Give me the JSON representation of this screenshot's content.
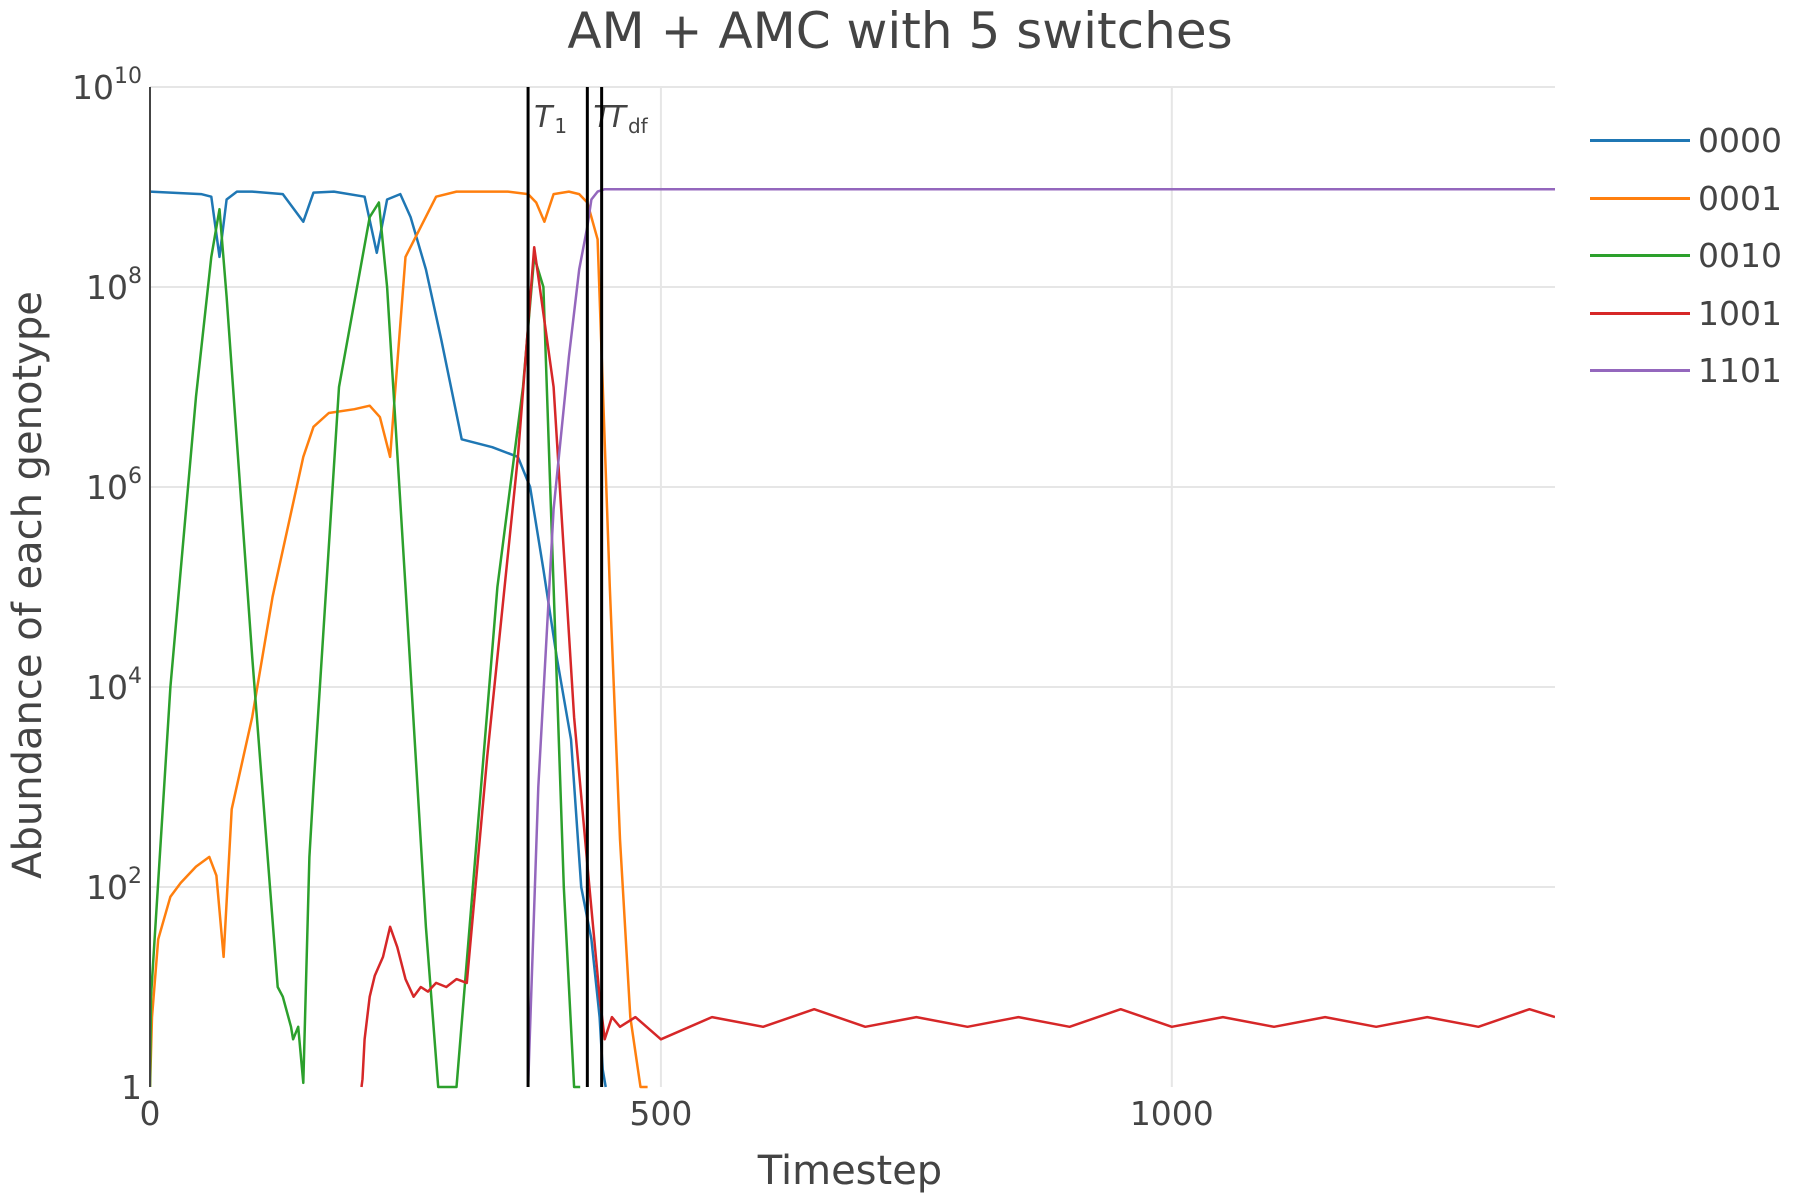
{
  "title": "AM + AMC with 5 switches",
  "xlabel": "Timestep",
  "ylabel": "Abundance of each genotype",
  "chart_data": {
    "type": "line",
    "title": "AM + AMC with 5 switches",
    "xlabel": "Timestep",
    "ylabel": "Abundance of each genotype",
    "xscale": "linear",
    "yscale": "log",
    "xlim": [
      0,
      1375
    ],
    "ylim": [
      1,
      10000000000
    ],
    "xticks": [
      0,
      500,
      1000
    ],
    "yticks": [
      1,
      100,
      10000,
      1000000,
      100000000,
      10000000000
    ],
    "ytick_labels": [
      {
        "base": "1",
        "exp": ""
      },
      {
        "base": "10",
        "exp": "2"
      },
      {
        "base": "10",
        "exp": "4"
      },
      {
        "base": "10",
        "exp": "6"
      },
      {
        "base": "10",
        "exp": "8"
      },
      {
        "base": "10",
        "exp": "10"
      }
    ],
    "grid": true,
    "legend_position": "right",
    "vlines": [
      {
        "x": 370,
        "label": "T",
        "sub": "1"
      },
      {
        "x": 428,
        "label": "T",
        "sub": ""
      },
      {
        "x": 442,
        "label": "T",
        "sub": "df"
      }
    ],
    "series": [
      {
        "name": "0000",
        "color": "#1f77b4",
        "x": [
          0,
          50,
          60,
          68,
          75,
          85,
          100,
          130,
          150,
          160,
          180,
          210,
          222,
          232,
          245,
          255,
          270,
          285,
          305,
          335,
          360,
          372,
          385,
          398,
          412,
          422,
          432,
          440,
          443,
          446
        ],
        "y": [
          900000000,
          850000000,
          800000000,
          200000000,
          750000000,
          900000000,
          900000000,
          850000000,
          450000000,
          880000000,
          900000000,
          800000000,
          220000000,
          750000000,
          850000000,
          500000000,
          150000000,
          30000000,
          3000000,
          2500000,
          2000000,
          1000000,
          150000,
          20000,
          3000,
          100,
          30,
          5,
          1.5,
          1
        ]
      },
      {
        "name": "0001",
        "color": "#ff7f0e",
        "x": [
          0,
          2,
          8,
          20,
          30,
          45,
          58,
          65,
          72,
          80,
          100,
          120,
          150,
          160,
          175,
          200,
          215,
          225,
          235,
          250,
          265,
          280,
          300,
          320,
          350,
          370,
          378,
          386,
          395,
          410,
          420,
          428,
          438,
          450,
          460,
          470,
          480,
          487
        ],
        "y": [
          1,
          5,
          30,
          80,
          110,
          160,
          200,
          130,
          20,
          600,
          5000,
          80000,
          2000000,
          4000000,
          5500000,
          6000000,
          6500000,
          5000000,
          2000000,
          200000000,
          400000000,
          800000000,
          900000000,
          900000000,
          900000000,
          850000000,
          700000000,
          450000000,
          850000000,
          900000000,
          850000000,
          700000000,
          300000000,
          100000,
          300,
          5,
          1,
          1
        ]
      },
      {
        "name": "0010",
        "color": "#2ca02c",
        "x": [
          0,
          1,
          20,
          45,
          60,
          68,
          75,
          100,
          125,
          130,
          138,
          140,
          145,
          150,
          156,
          160,
          185,
          215,
          224,
          232,
          250,
          270,
          282,
          300,
          340,
          365,
          376,
          385,
          395,
          405,
          415,
          421
        ],
        "y": [
          1,
          8,
          10000,
          8000000,
          200000000,
          600000000,
          80000000,
          20000,
          10,
          8,
          4,
          3,
          4,
          1.1,
          200,
          1000,
          10000000,
          500000000,
          700000000,
          100000000,
          100000,
          40,
          1,
          1,
          100000,
          10000000,
          200000000,
          100000000,
          100000,
          100,
          1,
          1
        ]
      },
      {
        "name": "1001",
        "color": "#d62728",
        "x": [
          207,
          208,
          210,
          215,
          220,
          228,
          235,
          242,
          250,
          258,
          265,
          272,
          280,
          290,
          300,
          310,
          330,
          360,
          376,
          395,
          415,
          430,
          440,
          445,
          452,
          460,
          475,
          500,
          550,
          600,
          650,
          700,
          750,
          800,
          850,
          900,
          950,
          1000,
          1050,
          1100,
          1150,
          1200,
          1250,
          1300,
          1350,
          1375
        ],
        "y": [
          1,
          1.2,
          3,
          8,
          13,
          20,
          40,
          25,
          12,
          8,
          10,
          9,
          11,
          10,
          12,
          11,
          2000,
          2000000,
          250000000,
          10000000,
          5000,
          100,
          8,
          3,
          5,
          4,
          5,
          3,
          5,
          4,
          6,
          4,
          5,
          4,
          5,
          4,
          6,
          4,
          5,
          4,
          5,
          4,
          5,
          4,
          6,
          5
        ]
      },
      {
        "name": "1101",
        "color": "#9467bd",
        "x": [
          370,
          371,
          380,
          395,
          410,
          420,
          428,
          432,
          438,
          445,
          480,
          700,
          1000,
          1375
        ],
        "y": [
          1,
          2,
          1000,
          600000,
          20000000,
          150000000,
          400000000,
          750000000,
          900000000,
          950000000,
          950000000,
          950000000,
          950000000,
          950000000
        ]
      }
    ]
  }
}
